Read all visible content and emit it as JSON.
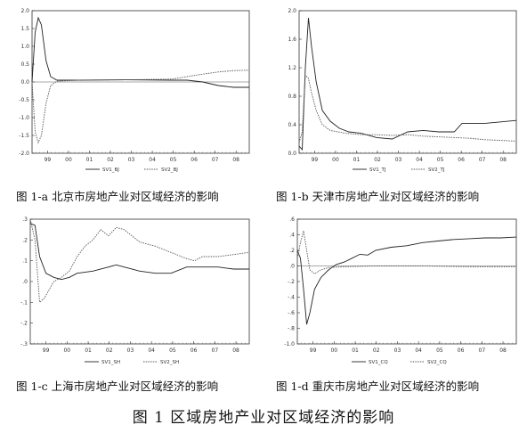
{
  "figure_caption": "图 1 区域房地产业对区域经济的影响",
  "chart_data": [
    {
      "type": "line",
      "caption": "图 1-a 北京市房地产业对区域经济的影响",
      "x_ticks": [
        "99",
        "00",
        "01",
        "02",
        "03",
        "04",
        "05",
        "06",
        "07",
        "08"
      ],
      "ylim": [
        -2.0,
        2.0
      ],
      "y_ticks": [
        "2.0",
        "1.5",
        "1.0",
        "0.5",
        "0.0",
        "-0.5",
        "-1.0",
        "-1.5",
        "-2.0"
      ],
      "y_tick_values": [
        2.0,
        1.5,
        1.0,
        0.5,
        0.0,
        -0.5,
        -1.0,
        -1.5,
        -2.0
      ],
      "zero_line": true,
      "legend": [
        "SV1_BJ",
        "SV2_BJ"
      ],
      "series": [
        {
          "name": "SV1_BJ",
          "points": [
            [
              0,
              0
            ],
            [
              0.2,
              1.4
            ],
            [
              0.4,
              1.8
            ],
            [
              0.6,
              1.6
            ],
            [
              0.9,
              0.6
            ],
            [
              1.2,
              0.15
            ],
            [
              1.6,
              0.05
            ],
            [
              3,
              0.05
            ],
            [
              6,
              0.06
            ],
            [
              9,
              0.05
            ],
            [
              10,
              0.05
            ],
            [
              11,
              0.0
            ],
            [
              12,
              -0.1
            ],
            [
              13,
              -0.15
            ],
            [
              14,
              -0.15
            ]
          ]
        },
        {
          "name": "SV2_BJ",
          "points": [
            [
              0,
              0
            ],
            [
              0.2,
              -1.4
            ],
            [
              0.4,
              -1.7
            ],
            [
              0.6,
              -1.5
            ],
            [
              0.9,
              -0.6
            ],
            [
              1.2,
              -0.1
            ],
            [
              1.6,
              0.02
            ],
            [
              3,
              0.05
            ],
            [
              6,
              0.06
            ],
            [
              9,
              0.08
            ],
            [
              10,
              0.15
            ],
            [
              11,
              0.22
            ],
            [
              12,
              0.28
            ],
            [
              13,
              0.32
            ],
            [
              14,
              0.33
            ]
          ]
        }
      ]
    },
    {
      "type": "line",
      "caption": "图 1-b 天津市房地产业对区域经济的影响",
      "x_ticks": [
        "99",
        "00",
        "01",
        "02",
        "03",
        "04",
        "05",
        "06",
        "07",
        "08"
      ],
      "ylim": [
        0.0,
        2.0
      ],
      "y_ticks": [
        "2.0",
        "1.6",
        "1.2",
        "0.8",
        "0.4",
        "0.0"
      ],
      "y_tick_values": [
        2.0,
        1.6,
        1.2,
        0.8,
        0.4,
        0.0
      ],
      "zero_line": false,
      "legend": [
        "SV1_TJ",
        "SV2_TJ"
      ],
      "series": [
        {
          "name": "SV1_TJ",
          "points": [
            [
              0,
              0.1
            ],
            [
              0.2,
              0.05
            ],
            [
              0.4,
              1.2
            ],
            [
              0.6,
              1.9
            ],
            [
              0.8,
              1.5
            ],
            [
              1.1,
              1.0
            ],
            [
              1.5,
              0.6
            ],
            [
              2,
              0.45
            ],
            [
              2.6,
              0.35
            ],
            [
              3.2,
              0.3
            ],
            [
              4,
              0.28
            ],
            [
              5,
              0.22
            ],
            [
              6,
              0.2
            ],
            [
              7,
              0.3
            ],
            [
              8,
              0.32
            ],
            [
              9,
              0.3
            ],
            [
              10,
              0.3
            ],
            [
              10.5,
              0.42
            ],
            [
              12,
              0.42
            ],
            [
              13,
              0.44
            ],
            [
              14,
              0.46
            ]
          ]
        },
        {
          "name": "SV2_TJ",
          "points": [
            [
              0,
              0.15
            ],
            [
              0.2,
              0.3
            ],
            [
              0.4,
              1.1
            ],
            [
              0.6,
              1.05
            ],
            [
              0.8,
              0.85
            ],
            [
              1.1,
              0.6
            ],
            [
              1.5,
              0.4
            ],
            [
              2,
              0.32
            ],
            [
              3,
              0.28
            ],
            [
              4,
              0.26
            ],
            [
              5,
              0.26
            ],
            [
              6,
              0.25
            ],
            [
              7,
              0.26
            ],
            [
              8,
              0.24
            ],
            [
              9,
              0.23
            ],
            [
              10,
              0.22
            ],
            [
              11,
              0.21
            ],
            [
              12,
              0.19
            ],
            [
              13,
              0.18
            ],
            [
              14,
              0.17
            ]
          ]
        }
      ]
    },
    {
      "type": "line",
      "caption": "图 1-c 上海市房地产业对区域经济的影响",
      "x_ticks": [
        "99",
        "00",
        "01",
        "02",
        "03",
        "04",
        "05",
        "06",
        "07",
        "08"
      ],
      "ylim": [
        -0.3,
        0.3
      ],
      "y_ticks": [
        ".3",
        ".2",
        ".1",
        ".0",
        "-.1",
        "-.2",
        "-.3"
      ],
      "y_tick_values": [
        0.3,
        0.2,
        0.1,
        0.0,
        -0.1,
        -0.2,
        -0.3
      ],
      "zero_line": false,
      "legend": [
        "SV1_SH",
        "SV2_SH"
      ],
      "series": [
        {
          "name": "SV1_SH",
          "points": [
            [
              0,
              0.28
            ],
            [
              0.3,
              0.27
            ],
            [
              0.6,
              0.12
            ],
            [
              1,
              0.04
            ],
            [
              1.5,
              0.02
            ],
            [
              2,
              0.01
            ],
            [
              2.5,
              0.02
            ],
            [
              3,
              0.04
            ],
            [
              4,
              0.05
            ],
            [
              5,
              0.07
            ],
            [
              5.5,
              0.08
            ],
            [
              6,
              0.07
            ],
            [
              7,
              0.05
            ],
            [
              8,
              0.04
            ],
            [
              9,
              0.04
            ],
            [
              10,
              0.07
            ],
            [
              11,
              0.07
            ],
            [
              12,
              0.07
            ],
            [
              13,
              0.06
            ],
            [
              14,
              0.06
            ]
          ]
        },
        {
          "name": "SV2_SH",
          "points": [
            [
              0,
              0.3
            ],
            [
              0.3,
              0.2
            ],
            [
              0.6,
              -0.1
            ],
            [
              0.9,
              -0.08
            ],
            [
              1.5,
              0.0
            ],
            [
              2,
              0.02
            ],
            [
              2.5,
              0.05
            ],
            [
              3,
              0.12
            ],
            [
              3.5,
              0.17
            ],
            [
              4,
              0.2
            ],
            [
              4.5,
              0.25
            ],
            [
              5,
              0.22
            ],
            [
              5.5,
              0.26
            ],
            [
              6,
              0.25
            ],
            [
              6.5,
              0.22
            ],
            [
              7,
              0.19
            ],
            [
              8,
              0.17
            ],
            [
              9,
              0.14
            ],
            [
              10,
              0.11
            ],
            [
              10.5,
              0.1
            ],
            [
              11,
              0.12
            ],
            [
              12,
              0.12
            ],
            [
              13,
              0.13
            ],
            [
              14,
              0.14
            ]
          ]
        }
      ]
    },
    {
      "type": "line",
      "caption": "图 1-d 重庆市房地产业对区域经济的影响",
      "x_ticks": [
        "99",
        "00",
        "01",
        "02",
        "03",
        "04",
        "05",
        "06",
        "07",
        "08"
      ],
      "ylim": [
        -1.0,
        0.6
      ],
      "y_ticks": [
        ".6",
        ".4",
        ".2",
        ".0",
        "-.2",
        "-.4",
        "-.6",
        "-.8",
        "-1.0"
      ],
      "y_tick_values": [
        0.6,
        0.4,
        0.2,
        0.0,
        -0.2,
        -0.4,
        -0.6,
        -0.8,
        -1.0
      ],
      "zero_line": true,
      "legend": [
        "SV1_CQ",
        "SV2_CQ"
      ],
      "series": [
        {
          "name": "SV1_CQ",
          "points": [
            [
              0,
              0.2
            ],
            [
              0.2,
              0.1
            ],
            [
              0.4,
              -0.3
            ],
            [
              0.6,
              -0.75
            ],
            [
              0.8,
              -0.6
            ],
            [
              1.1,
              -0.3
            ],
            [
              1.5,
              -0.15
            ],
            [
              2,
              -0.05
            ],
            [
              2.5,
              0.02
            ],
            [
              3,
              0.05
            ],
            [
              3.5,
              0.1
            ],
            [
              4,
              0.15
            ],
            [
              4.5,
              0.14
            ],
            [
              5,
              0.2
            ],
            [
              6,
              0.24
            ],
            [
              7,
              0.26
            ],
            [
              8,
              0.3
            ],
            [
              9,
              0.32
            ],
            [
              10,
              0.34
            ],
            [
              11,
              0.35
            ],
            [
              12,
              0.36
            ],
            [
              13,
              0.36
            ],
            [
              14,
              0.37
            ]
          ]
        },
        {
          "name": "SV2_CQ",
          "points": [
            [
              0,
              0.1
            ],
            [
              0.2,
              0.3
            ],
            [
              0.4,
              0.45
            ],
            [
              0.6,
              0.2
            ],
            [
              0.8,
              -0.05
            ],
            [
              1.1,
              -0.1
            ],
            [
              1.5,
              -0.05
            ],
            [
              2,
              -0.02
            ],
            [
              3,
              -0.01
            ],
            [
              5,
              0.0
            ],
            [
              8,
              0.0
            ],
            [
              11,
              -0.01
            ],
            [
              14,
              -0.01
            ]
          ]
        }
      ]
    }
  ]
}
